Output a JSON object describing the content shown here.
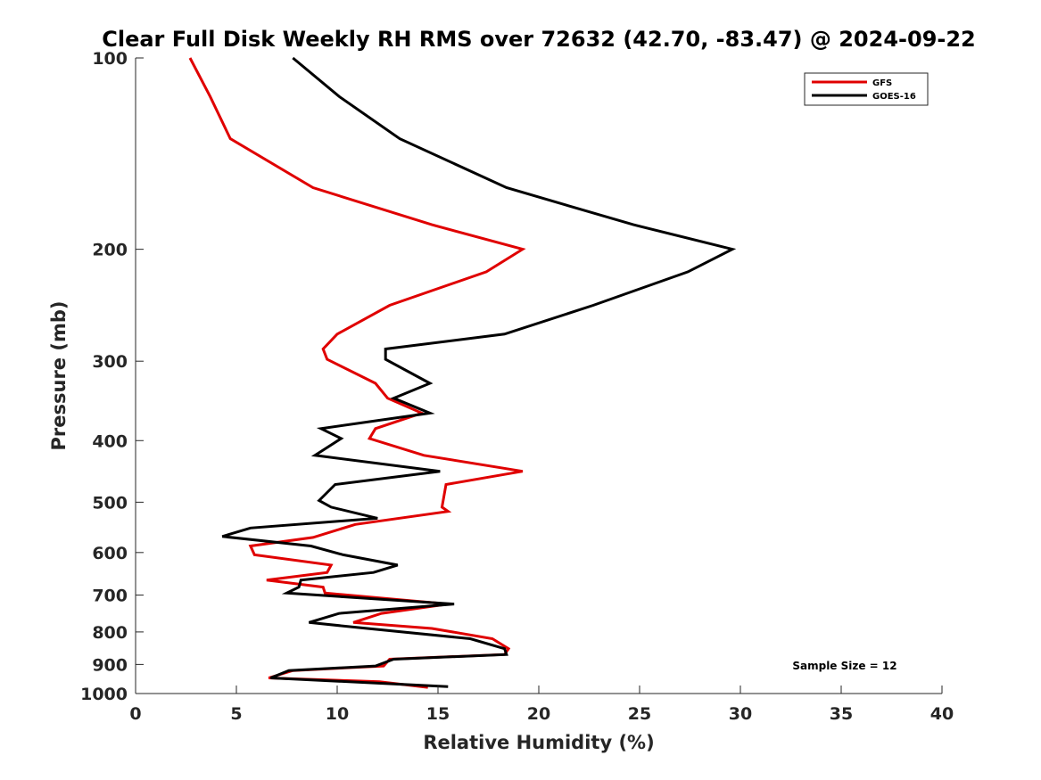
{
  "chart_data": {
    "type": "line",
    "title": "Clear Full Disk Weekly RH RMS over 72632 (42.70, -83.47) @ 2024-09-22",
    "xlabel": "Relative Humidity (%)",
    "ylabel": "Pressure (mb)",
    "xlim": [
      0,
      40
    ],
    "ylim": [
      100,
      1000
    ],
    "yscale": "log",
    "y_reversed": true,
    "grid": false,
    "legend_position": "top-right",
    "xticks": [
      0,
      5,
      10,
      15,
      20,
      25,
      30,
      35,
      40
    ],
    "yticks": [
      100,
      200,
      300,
      400,
      500,
      600,
      700,
      800,
      900,
      1000
    ],
    "annotation": "Sample Size = 12",
    "series": [
      {
        "name": "GFS",
        "color": "#e00000",
        "points": [
          [
            2.7,
            100
          ],
          [
            3.7,
            115
          ],
          [
            4.7,
            134
          ],
          [
            8.8,
            160
          ],
          [
            14.7,
            183
          ],
          [
            19.2,
            200
          ],
          [
            17.4,
            217
          ],
          [
            12.6,
            245
          ],
          [
            10.0,
            272
          ],
          [
            9.3,
            287
          ],
          [
            9.5,
            298
          ],
          [
            11.9,
            325
          ],
          [
            12.5,
            343
          ],
          [
            14.2,
            362
          ],
          [
            11.9,
            383
          ],
          [
            11.6,
            397
          ],
          [
            14.3,
            422
          ],
          [
            19.2,
            447
          ],
          [
            15.4,
            469
          ],
          [
            15.2,
            509
          ],
          [
            15.5,
            517
          ],
          [
            10.9,
            542
          ],
          [
            8.8,
            568
          ],
          [
            5.7,
            586
          ],
          [
            5.9,
            605
          ],
          [
            9.7,
            628
          ],
          [
            9.5,
            645
          ],
          [
            6.5,
            663
          ],
          [
            9.3,
            680
          ],
          [
            9.4,
            695
          ],
          [
            15.5,
            723
          ],
          [
            12.2,
            748
          ],
          [
            10.8,
            773
          ],
          [
            14.7,
            790
          ],
          [
            17.7,
            820
          ],
          [
            18.5,
            850
          ],
          [
            18.3,
            868
          ],
          [
            12.6,
            883
          ],
          [
            12.3,
            905
          ],
          [
            7.8,
            920
          ],
          [
            6.6,
            945
          ],
          [
            12.1,
            958
          ],
          [
            14.5,
            978
          ]
        ]
      },
      {
        "name": "GOES-16",
        "color": "#000000",
        "points": [
          [
            7.8,
            100
          ],
          [
            10.1,
            115
          ],
          [
            13.1,
            134
          ],
          [
            18.4,
            160
          ],
          [
            24.7,
            183
          ],
          [
            29.6,
            200
          ],
          [
            27.4,
            217
          ],
          [
            22.7,
            245
          ],
          [
            18.3,
            272
          ],
          [
            12.4,
            287
          ],
          [
            12.4,
            298
          ],
          [
            14.6,
            325
          ],
          [
            12.8,
            343
          ],
          [
            14.6,
            362
          ],
          [
            9.2,
            383
          ],
          [
            10.2,
            397
          ],
          [
            8.9,
            422
          ],
          [
            15.1,
            447
          ],
          [
            9.9,
            469
          ],
          [
            9.1,
            497
          ],
          [
            9.7,
            509
          ],
          [
            12.0,
            530
          ],
          [
            5.7,
            549
          ],
          [
            4.3,
            566
          ],
          [
            8.7,
            586
          ],
          [
            10.3,
            605
          ],
          [
            13.0,
            628
          ],
          [
            11.8,
            645
          ],
          [
            8.2,
            663
          ],
          [
            8.1,
            680
          ],
          [
            7.5,
            695
          ],
          [
            15.8,
            723
          ],
          [
            10.1,
            748
          ],
          [
            8.6,
            773
          ],
          [
            11.5,
            790
          ],
          [
            16.6,
            820
          ],
          [
            18.3,
            850
          ],
          [
            18.4,
            868
          ],
          [
            12.8,
            883
          ],
          [
            11.9,
            905
          ],
          [
            7.6,
            920
          ],
          [
            6.7,
            945
          ],
          [
            15.5,
            975
          ]
        ]
      }
    ]
  }
}
